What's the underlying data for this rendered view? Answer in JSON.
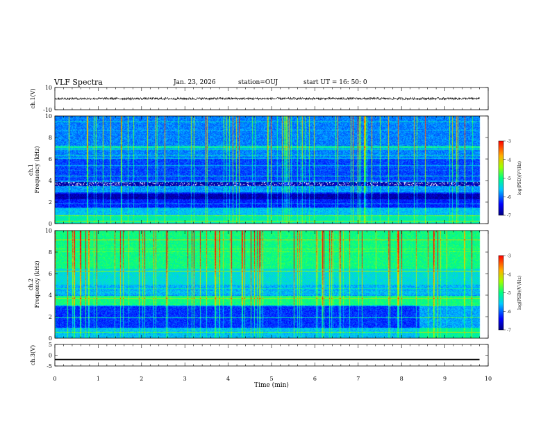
{
  "header": {
    "title": "VLF Spectra",
    "date": "Jan. 23, 2026",
    "station": "station=OUJ",
    "start": "start  UT =   16: 50: 0"
  },
  "chart_data": [
    {
      "type": "line",
      "panel": "ch1-waveform",
      "ylabel": "ch.1(V)",
      "ylim": [
        -10,
        10
      ],
      "yticks": [
        "10",
        "-10"
      ],
      "series": [
        {
          "name": "ch.1",
          "mean": 0,
          "amplitude": 1
        }
      ]
    },
    {
      "type": "heatmap",
      "panel": "ch1-spectrogram",
      "ylabel": "Frequency (kHz)",
      "channel_label": "ch.1",
      "ylim": [
        0,
        10
      ],
      "yticks": [
        "0",
        "2",
        "4",
        "6",
        "8",
        "10"
      ],
      "colorbar": {
        "label": "log(PSD)(V²/Hz)",
        "range": [
          -7,
          -3
        ],
        "ticks": [
          "-3",
          "-4",
          "-5",
          "-6",
          "-7"
        ]
      }
    },
    {
      "type": "heatmap",
      "panel": "ch2-spectrogram",
      "ylabel": "Frequency (kHz)",
      "channel_label": "ch.2",
      "ylim": [
        0,
        10
      ],
      "yticks": [
        "0",
        "2",
        "4",
        "6",
        "8",
        "10"
      ],
      "colorbar": {
        "label": "log(PSD)(V²/Hz)",
        "range": [
          -7,
          -3
        ],
        "ticks": [
          "-3",
          "-4",
          "-5",
          "-6",
          "-7"
        ]
      }
    },
    {
      "type": "line",
      "panel": "ch3-waveform",
      "ylabel": "ch.3(V)",
      "ylim": [
        -5,
        5
      ],
      "yticks": [
        "5",
        "0",
        "-5"
      ],
      "series": [
        {
          "name": "ch.3",
          "mean": -2,
          "amplitude": 0.3
        }
      ]
    }
  ],
  "xaxis": {
    "label": "Time (min)",
    "range": [
      0,
      10
    ],
    "ticks": [
      "0",
      "1",
      "2",
      "3",
      "4",
      "5",
      "6",
      "7",
      "8",
      "9",
      "10"
    ],
    "data_end": 9.8
  }
}
